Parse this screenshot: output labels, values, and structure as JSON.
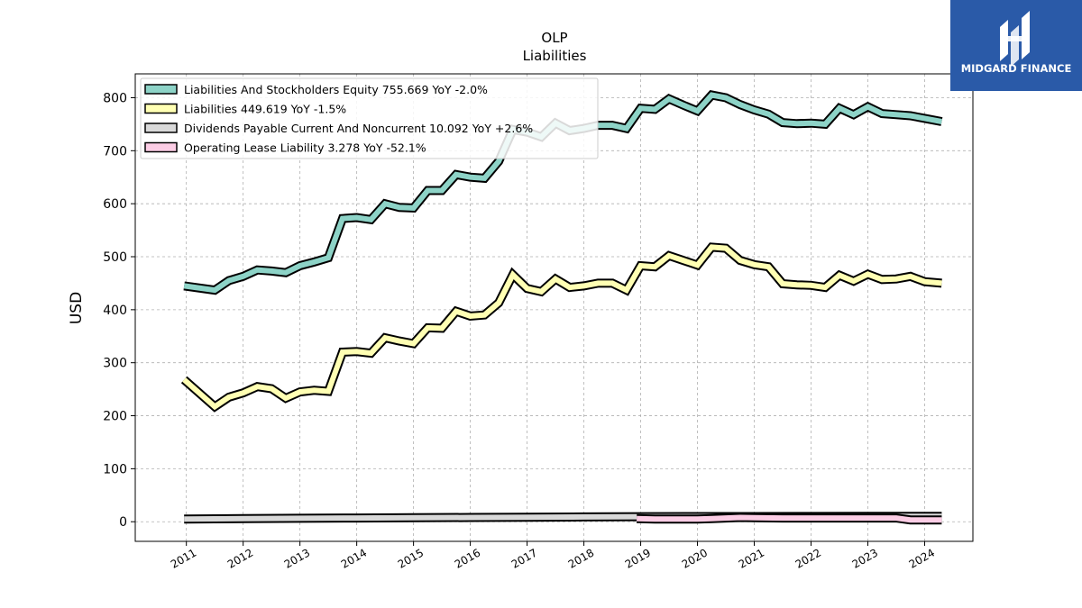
{
  "brand": {
    "name": "MIDGARD FINANCE",
    "bg_color": "#2a5aa8"
  },
  "chart_data": {
    "type": "line",
    "title": "OLP",
    "subtitle": "Liabilities",
    "ylabel": "USD",
    "xlabel": "",
    "ylim": [
      -37,
      845
    ],
    "xlim": [
      2010.1,
      2024.85
    ],
    "yticks": [
      0,
      100,
      200,
      300,
      400,
      500,
      600,
      700,
      800
    ],
    "xticks": [
      "2011",
      "2012",
      "2013",
      "2014",
      "2015",
      "2016",
      "2017",
      "2018",
      "2019",
      "2020",
      "2021",
      "2022",
      "2023",
      "2024"
    ],
    "grid": true,
    "legend_position": "top-left",
    "series": [
      {
        "name": "Liabilities And Stockholders Equity",
        "legend_label": "Liabilities And Stockholders Equity  755.669 YoY -2.0%",
        "color": "#8dd3c7",
        "x": [
          2010.96,
          2011.5,
          2011.75,
          2012.0,
          2012.25,
          2012.5,
          2012.75,
          2013.0,
          2013.25,
          2013.5,
          2013.75,
          2014.0,
          2014.25,
          2014.5,
          2014.75,
          2015.0,
          2015.25,
          2015.5,
          2015.75,
          2016.0,
          2016.25,
          2016.5,
          2016.75,
          2017.0,
          2017.25,
          2017.5,
          2017.75,
          2018.0,
          2018.25,
          2018.5,
          2018.75,
          2019.0,
          2019.25,
          2019.5,
          2019.75,
          2020.0,
          2020.25,
          2020.5,
          2020.75,
          2021.0,
          2021.25,
          2021.5,
          2021.75,
          2022.0,
          2022.25,
          2022.5,
          2022.75,
          2023.0,
          2023.25,
          2023.5,
          2023.75,
          2024.0,
          2024.3
        ],
        "values": [
          445,
          437,
          455,
          463,
          475,
          473,
          470,
          483,
          490,
          498,
          572,
          574,
          570,
          600,
          593,
          592,
          625,
          625,
          655,
          650,
          648,
          680,
          740,
          735,
          726,
          752,
          738,
          742,
          748,
          748,
          742,
          780,
          778,
          798,
          786,
          775,
          805,
          800,
          787,
          777,
          769,
          753,
          751,
          752,
          750,
          780,
          768,
          783,
          770,
          768,
          766,
          761,
          755
        ]
      },
      {
        "name": "Liabilities",
        "legend_label": "Liabilities  449.619 YoY -1.5%",
        "color": "#ffffb3",
        "x": [
          2010.96,
          2011.5,
          2011.75,
          2012.0,
          2012.25,
          2012.5,
          2012.75,
          2013.0,
          2013.25,
          2013.5,
          2013.75,
          2014.0,
          2014.25,
          2014.5,
          2014.75,
          2015.0,
          2015.25,
          2015.5,
          2015.75,
          2016.0,
          2016.25,
          2016.5,
          2016.75,
          2017.0,
          2017.25,
          2017.5,
          2017.75,
          2018.0,
          2018.25,
          2018.5,
          2018.75,
          2019.0,
          2019.25,
          2019.5,
          2019.75,
          2020.0,
          2020.25,
          2020.5,
          2020.75,
          2021.0,
          2021.25,
          2021.5,
          2021.75,
          2022.0,
          2022.25,
          2022.5,
          2022.75,
          2023.0,
          2023.25,
          2023.5,
          2023.75,
          2024.0,
          2024.3
        ],
        "values": [
          268,
          217,
          235,
          243,
          255,
          251,
          233,
          245,
          248,
          246,
          320,
          321,
          318,
          347,
          341,
          336,
          366,
          365,
          397,
          388,
          390,
          413,
          466,
          440,
          434,
          458,
          442,
          445,
          450,
          450,
          437,
          483,
          481,
          502,
          493,
          484,
          518,
          516,
          493,
          485,
          481,
          449,
          447,
          446,
          442,
          465,
          454,
          467,
          457,
          458,
          463,
          453,
          450
        ]
      },
      {
        "name": "Dividends Payable Current And Noncurrent",
        "legend_label": "Dividends Payable Current And Noncurrent  10.092 YoY +2.6%",
        "color": "#d9d9d9",
        "x": [
          2010.96,
          2012.0,
          2013.0,
          2014.0,
          2015.0,
          2016.0,
          2017.0,
          2018.0,
          2019.0,
          2020.0,
          2021.0,
          2022.0,
          2023.0,
          2024.3
        ],
        "values": [
          5,
          6,
          6.5,
          7,
          7.5,
          8,
          8.5,
          9,
          9.5,
          9.8,
          9.8,
          9.9,
          10,
          10.1
        ]
      },
      {
        "name": "Operating Lease Liability",
        "legend_label": "Operating Lease Liability  3.278 YoY -52.1%",
        "color": "#fccde5",
        "x": [
          2018.93,
          2019.25,
          2019.5,
          2019.75,
          2020.0,
          2020.25,
          2020.5,
          2020.75,
          2021.0,
          2021.5,
          2022.0,
          2022.5,
          2023.0,
          2023.5,
          2023.75,
          2024.0,
          2024.3
        ],
        "values": [
          6,
          5,
          5,
          5,
          5,
          6,
          7,
          8,
          7.5,
          7,
          7,
          7,
          7,
          7,
          3.5,
          3.3,
          3.3
        ]
      }
    ]
  }
}
